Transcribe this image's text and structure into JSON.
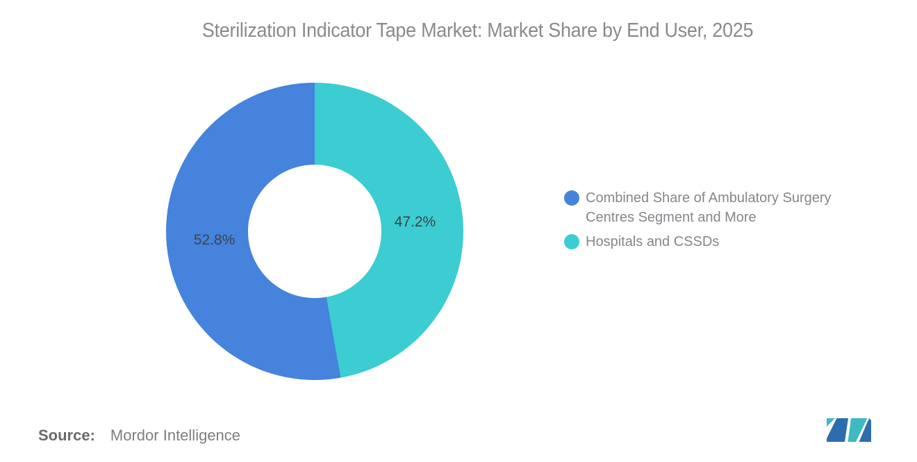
{
  "title": "Sterilization Indicator Tape Market: Market Share by End User, 2025",
  "chart_data": {
    "type": "pie",
    "subtype": "donut",
    "title": "Sterilization Indicator Tape Market: Market Share by End User, 2025",
    "start_angle_deg": 0,
    "direction": "clockwise",
    "inner_radius_ratio": 0.45,
    "legend_position": "right",
    "slices": [
      {
        "label": "Hospitals and CSSDs",
        "value": 47.2,
        "data_label": "47.2%",
        "color": "#3bcdd2"
      },
      {
        "label": "Combined Share of Ambulatory Surgery Centres Segment and More",
        "value": 52.8,
        "data_label": "52.8%",
        "color": "#4583dc"
      }
    ]
  },
  "legend": {
    "items": [
      {
        "label": "Combined Share of Ambulatory Surgery Centres Segment and More",
        "color": "#4583dc"
      },
      {
        "label": "Hospitals and CSSDs",
        "color": "#3bcdd2"
      }
    ]
  },
  "source": {
    "label": "Source:",
    "value": "Mordor Intelligence"
  },
  "logo": {
    "name": "mordor-intelligence-logo",
    "colors": {
      "blue": "#2d6dae",
      "teal": "#40b9c4"
    }
  }
}
